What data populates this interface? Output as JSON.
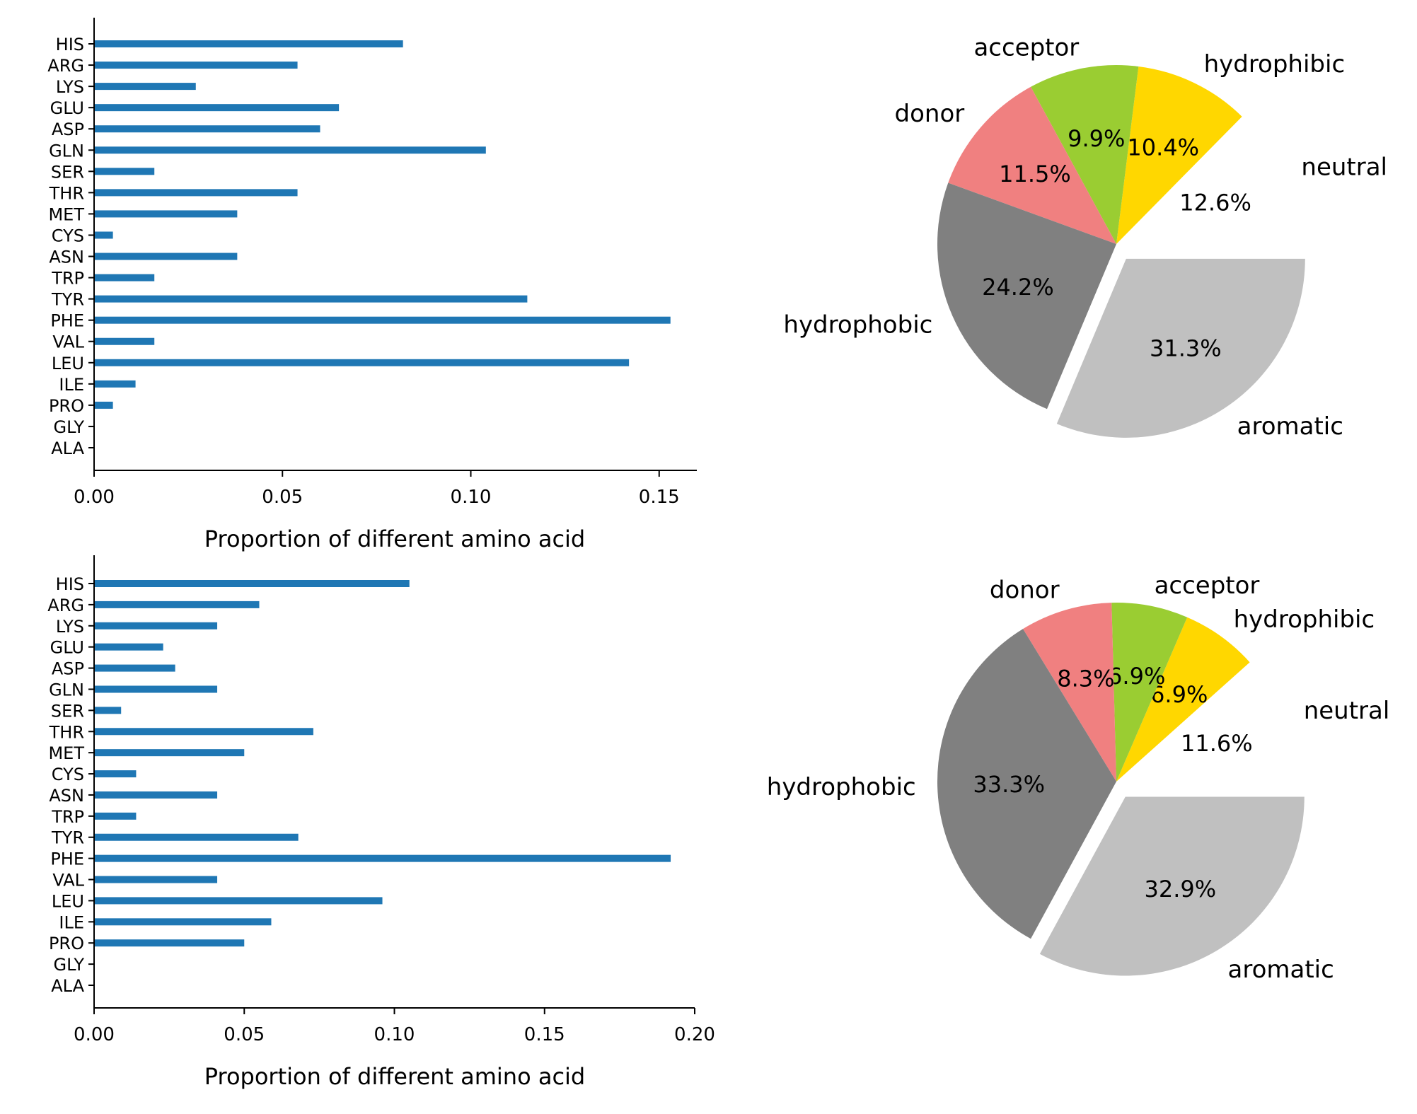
{
  "chart_data": [
    {
      "type": "bar",
      "orientation": "horizontal",
      "categories": [
        "HIS",
        "ARG",
        "LYS",
        "GLU",
        "ASP",
        "GLN",
        "SER",
        "THR",
        "MET",
        "CYS",
        "ASN",
        "TRP",
        "TYR",
        "PHE",
        "VAL",
        "LEU",
        "ILE",
        "PRO",
        "GLY",
        "ALA"
      ],
      "values": [
        0.082,
        0.054,
        0.027,
        0.065,
        0.06,
        0.104,
        0.016,
        0.054,
        0.038,
        0.005,
        0.038,
        0.016,
        0.115,
        0.153,
        0.016,
        0.142,
        0.011,
        0.005,
        0.0,
        0.0
      ],
      "xlabel": "Proportion of different amino acid",
      "xlim": [
        0,
        0.16
      ],
      "xticks": [
        "0.00",
        "0.05",
        "0.10",
        "0.15"
      ],
      "color": "#1f77b4"
    },
    {
      "type": "pie",
      "labels": [
        "neutral",
        "hydrophibic",
        "acceptor",
        "donor",
        "hydrophobic",
        "aromatic"
      ],
      "values": [
        12.6,
        10.4,
        9.9,
        11.5,
        24.2,
        31.3
      ],
      "pct_labels": [
        "12.6%",
        "10.4%",
        "9.9%",
        "11.5%",
        "24.2%",
        "31.3%"
      ],
      "colors": [
        "#ffffff",
        "#ffd700",
        "#9acd32",
        "#f08080",
        "#808080",
        "#c0c0c0"
      ],
      "explode_index": 5
    },
    {
      "type": "bar",
      "orientation": "horizontal",
      "categories": [
        "HIS",
        "ARG",
        "LYS",
        "GLU",
        "ASP",
        "GLN",
        "SER",
        "THR",
        "MET",
        "CYS",
        "ASN",
        "TRP",
        "TYR",
        "PHE",
        "VAL",
        "LEU",
        "ILE",
        "PRO",
        "GLY",
        "ALA"
      ],
      "values": [
        0.105,
        0.055,
        0.041,
        0.023,
        0.027,
        0.041,
        0.009,
        0.073,
        0.05,
        0.014,
        0.041,
        0.014,
        0.068,
        0.192,
        0.041,
        0.096,
        0.059,
        0.05,
        0.0,
        0.0
      ],
      "xlabel": "Proportion of different amino acid",
      "xlim": [
        0,
        0.2
      ],
      "xticks": [
        "0.00",
        "0.05",
        "0.10",
        "0.15",
        "0.20"
      ],
      "color": "#1f77b4"
    },
    {
      "type": "pie",
      "labels": [
        "neutral",
        "hydrophibic",
        "acceptor",
        "donor",
        "hydrophobic",
        "aromatic"
      ],
      "values": [
        11.6,
        6.9,
        6.9,
        8.3,
        33.3,
        32.9
      ],
      "pct_labels": [
        "11.6%",
        "6.9%",
        "6.9%",
        "8.3%",
        "33.3%",
        "32.9%"
      ],
      "colors": [
        "#ffffff",
        "#ffd700",
        "#9acd32",
        "#f08080",
        "#808080",
        "#c0c0c0"
      ],
      "explode_index": 5
    }
  ]
}
